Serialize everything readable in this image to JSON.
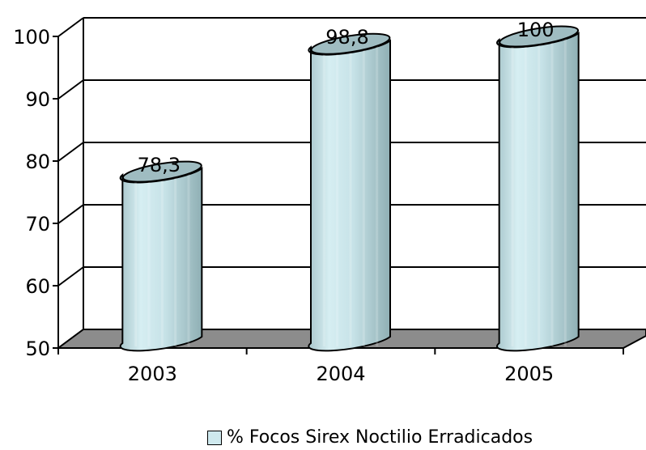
{
  "chart_data": {
    "type": "bar",
    "categories": [
      "2003",
      "2004",
      "2005"
    ],
    "series": [
      {
        "name": "% Focos Sirex Noctilio Erradicados",
        "values": [
          78.3,
          98.8,
          100
        ]
      }
    ],
    "data_labels": [
      "78,3",
      "98,8",
      "100"
    ],
    "y_ticks": [
      "50",
      "60",
      "70",
      "80",
      "90",
      "100"
    ],
    "ylim": [
      50,
      100
    ],
    "grid": true,
    "legend_position": "bottom",
    "colors": {
      "bar": "#cfe9ee",
      "floor": "#8c8c8c"
    }
  },
  "legend": {
    "label": "% Focos Sirex Noctilio Erradicados"
  }
}
